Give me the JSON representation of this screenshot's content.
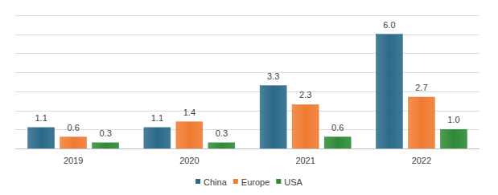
{
  "chart_data": {
    "type": "bar",
    "categories": [
      "2019",
      "2020",
      "2021",
      "2022"
    ],
    "series": [
      {
        "name": "China",
        "color": "#2b6a8a",
        "values": [
          1.1,
          1.1,
          3.3,
          6.0
        ],
        "value_labels": [
          "1.1",
          "1.1",
          "3.3",
          "6.0"
        ]
      },
      {
        "name": "Europe",
        "color": "#f07b32",
        "values": [
          0.6,
          1.4,
          2.3,
          2.7
        ],
        "value_labels": [
          "0.6",
          "1.4",
          "2.3",
          "2.7"
        ]
      },
      {
        "name": "USA",
        "color": "#2f8a36",
        "values": [
          0.3,
          0.3,
          0.6,
          1.0
        ],
        "value_labels": [
          "0.3",
          "0.3",
          "0.6",
          "1.0"
        ]
      }
    ],
    "ylim": [
      0,
      7
    ],
    "yticks": [
      0,
      1,
      2,
      3,
      4,
      5,
      6,
      7
    ],
    "grid": true,
    "legend": "bottom",
    "data_labels": true,
    "tick_labels": "x"
  }
}
